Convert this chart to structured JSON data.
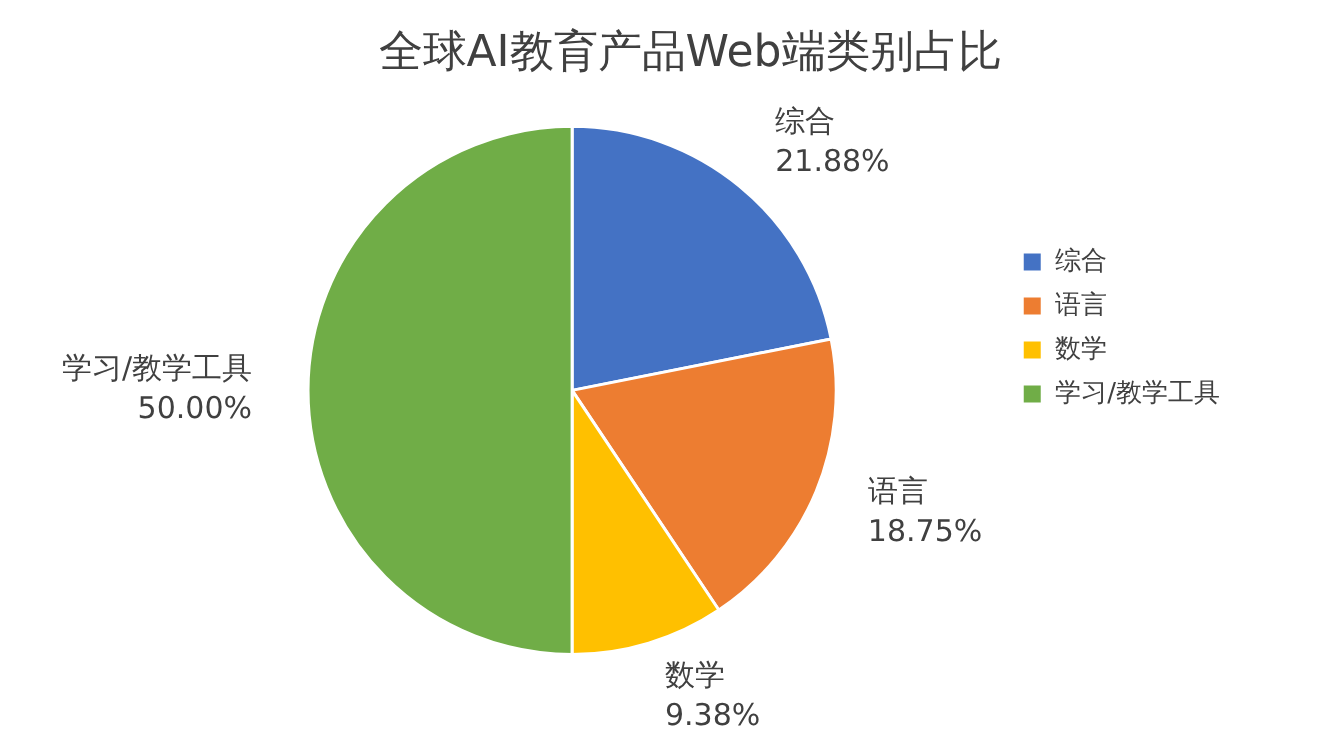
{
  "chart_data": {
    "type": "pie",
    "title": "全球AI教育产品Web端类别占比",
    "categories": [
      "综合",
      "语言",
      "数学",
      "学习/教学工具"
    ],
    "values": [
      21.88,
      18.75,
      9.38,
      50.0
    ],
    "colors": [
      "#4472c4",
      "#ed7d31",
      "#ffc000",
      "#70ad47"
    ],
    "value_labels": [
      "21.88%",
      "18.75%",
      "9.38%",
      "50.00%"
    ],
    "legend": "right"
  }
}
